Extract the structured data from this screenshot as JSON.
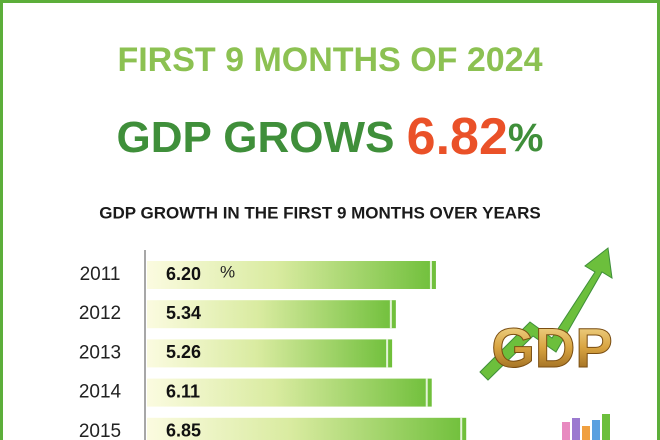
{
  "chart_data": {
    "type": "bar",
    "orientation": "horizontal",
    "kicker": "FIRST 9 MONTHS OF 2024",
    "headline": "GDP GROWS",
    "headline_value": "6.82",
    "unit": "%",
    "title": "GDP GROWTH IN THE FIRST 9 MONTHS OVER YEARS",
    "badge_text": "GDP",
    "categories": [
      "2011",
      "2012",
      "2013",
      "2014",
      "2015"
    ],
    "values": [
      6.2,
      5.34,
      5.26,
      6.11,
      6.85
    ],
    "value_labels": [
      "6.20",
      "5.34",
      "5.26",
      "6.11",
      "6.85"
    ],
    "color": "#6fbf3a",
    "xlim": [
      0,
      10
    ]
  }
}
